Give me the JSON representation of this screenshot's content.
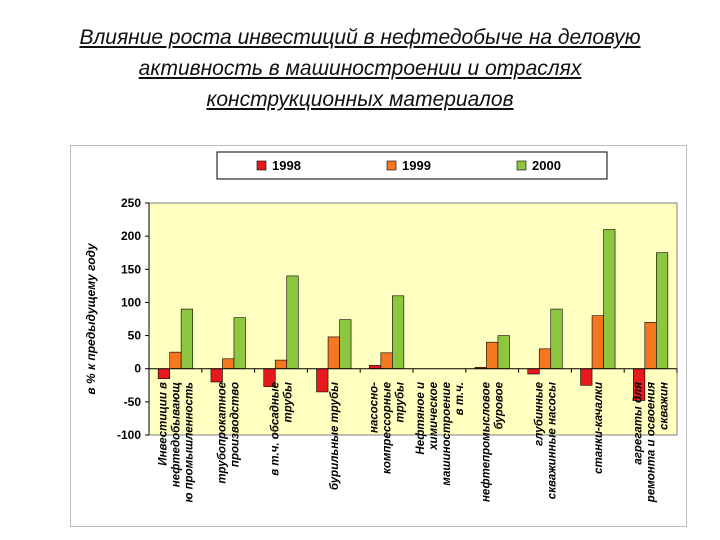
{
  "slide": {
    "title_lines": [
      "Влияние роста инвестиций в нефтедобыче на деловую",
      "активность в машиностроении и отраслях",
      "конструкционных материалов"
    ]
  },
  "chart_data": {
    "type": "bar",
    "title": "",
    "xlabel": "",
    "ylabel": "в % к предыдущему году",
    "ylim": [
      -100,
      250
    ],
    "yticks": [
      -100,
      -50,
      0,
      50,
      100,
      150,
      200,
      250
    ],
    "grid": false,
    "legend_position": "top",
    "plot_background": "#ffffc0",
    "categories": [
      [
        "Инвестиции в",
        "нефтедобывающ",
        "ю промышленность"
      ],
      [
        "трубопрокатное",
        "производство"
      ],
      [
        "в т.ч. обсадные",
        "трубы"
      ],
      [
        "бурильные трубы"
      ],
      [
        "насосно-",
        "компрессорные",
        "трубы"
      ],
      [
        "Нефтяное и",
        "химическое",
        "машиностроение",
        "в т.ч."
      ],
      [
        "нефтепромысловое",
        "буровое"
      ],
      [
        "глубинные",
        "скважинные насосы"
      ],
      [
        "станки-качалки"
      ],
      [
        "агрегаты для",
        "ремонта и освоения",
        "скважин"
      ]
    ],
    "series": [
      {
        "name": "1998",
        "color": "#e8191e",
        "values": [
          -15,
          -20,
          -27,
          -35,
          5,
          0,
          2,
          -8,
          -25,
          -48
        ]
      },
      {
        "name": "1999",
        "color": "#f5771f",
        "values": [
          25,
          15,
          13,
          48,
          24,
          0,
          40,
          30,
          80,
          70
        ]
      },
      {
        "name": "2000",
        "color": "#8dc63f",
        "values": [
          90,
          77,
          140,
          74,
          110,
          0,
          50,
          90,
          210,
          175
        ]
      }
    ]
  }
}
